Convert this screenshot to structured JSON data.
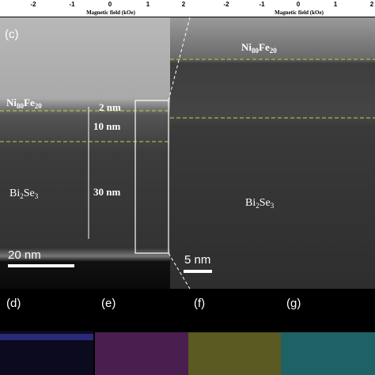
{
  "top_strip": {
    "ticks_left": [
      "-2",
      "-1",
      "0",
      "1",
      "2"
    ],
    "axis_label_left": "Magnetic field (kOe)",
    "ticks_right": [
      "-2",
      "-1",
      "0",
      "1",
      "2"
    ],
    "axis_label_right": "Magnetic field (kOe)"
  },
  "panel_c": {
    "label": "(c)",
    "film_formula": [
      "Ni",
      "80",
      "Fe",
      "20"
    ],
    "thickness_top": "2 nm",
    "thickness_middle": "10 nm",
    "thickness_bottom": "30 nm",
    "substrate_formula": [
      "Bi",
      "2",
      "Se",
      "3"
    ],
    "scale_bar": "20 nm"
  },
  "panel_zoom": {
    "film_formula": [
      "Ni",
      "80",
      "Fe",
      "20"
    ],
    "substrate_formula": [
      "Bi",
      "2",
      "Se",
      "3"
    ],
    "scale_bar": "5 nm"
  },
  "eds_panels": [
    "(d)",
    "(e)",
    "(f)",
    "(g)"
  ]
}
